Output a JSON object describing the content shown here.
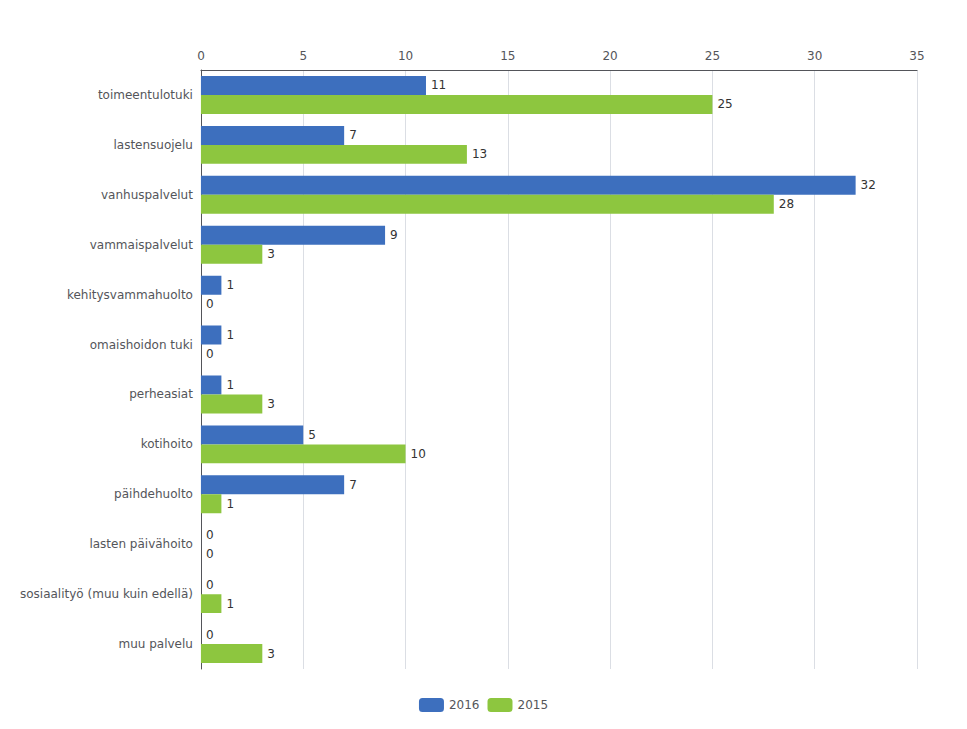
{
  "chart_data": {
    "type": "bar",
    "orientation": "horizontal",
    "categories": [
      "toimeentulotuki",
      "lastensuojelu",
      "vanhuspalvelut",
      "vammaispalvelut",
      "kehitysvammahuolto",
      "omaishoidon tuki",
      "perheasiat",
      "kotihoito",
      "päihdehuolto",
      "lasten päivähoito",
      "sosiaalityö (muu kuin edellä)",
      "muu palvelu"
    ],
    "series": [
      {
        "name": "2016",
        "color": "#3d6fbe",
        "values": [
          11,
          7,
          32,
          9,
          1,
          1,
          1,
          5,
          7,
          0,
          0,
          0
        ]
      },
      {
        "name": "2015",
        "color": "#8dc63f",
        "values": [
          25,
          13,
          28,
          3,
          0,
          0,
          3,
          10,
          1,
          0,
          1,
          3
        ]
      }
    ],
    "xlim": [
      0,
      35
    ],
    "xticks": [
      0,
      5,
      10,
      15,
      20,
      25,
      30,
      35
    ],
    "grid": true,
    "data_labels": true,
    "legend": "bottom"
  }
}
